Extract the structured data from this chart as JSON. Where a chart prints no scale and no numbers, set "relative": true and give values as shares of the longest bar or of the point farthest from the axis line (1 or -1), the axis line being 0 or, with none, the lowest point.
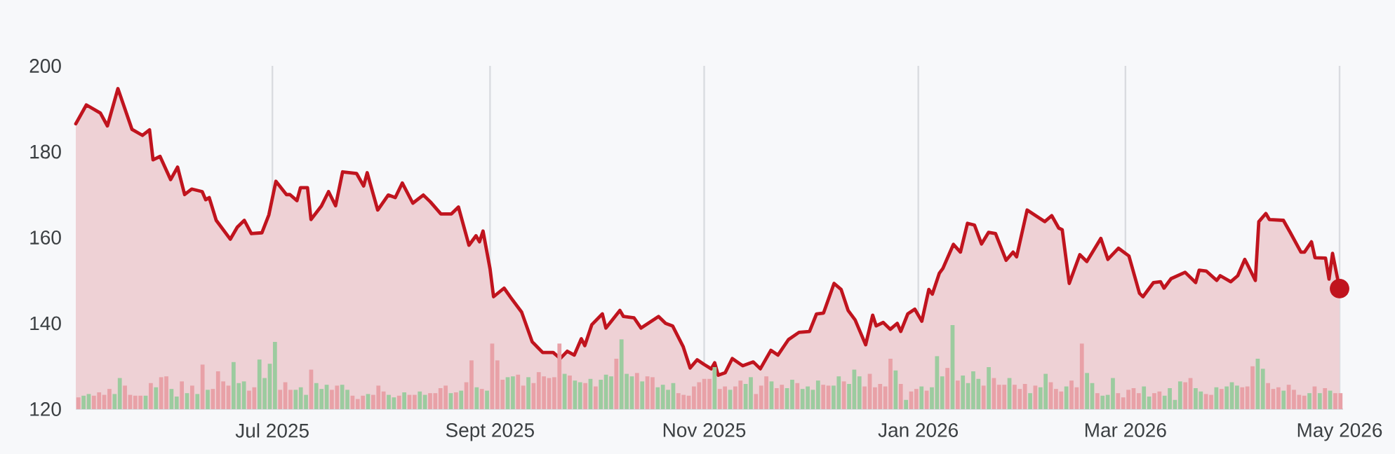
{
  "chart_data": [
    {
      "type": "area",
      "grid": "x",
      "xlim": [
        "2025-05-06",
        "2026-05-02"
      ],
      "xticks": [
        {
          "value": "2025-07-01",
          "label": "Jul 2025"
        },
        {
          "value": "2025-09-01",
          "label": "Sept 2025"
        },
        {
          "value": "2025-11-01",
          "label": "Nov 2025"
        },
        {
          "value": "2026-01-01",
          "label": "Jan 2026"
        },
        {
          "value": "2026-03-01",
          "label": "Mar 2026"
        },
        {
          "value": "2026-05-01",
          "label": "May 2026"
        }
      ],
      "ylim": [
        120,
        200
      ],
      "yticks": [
        120,
        140,
        160,
        180,
        200
      ],
      "series": [
        {
          "type": "area",
          "color": "#c0141e",
          "x": [
            "2025-05-06",
            "2025-05-09",
            "2025-05-13",
            "2025-05-15",
            "2025-05-18",
            "2025-05-22",
            "2025-05-25",
            "2025-05-27",
            "2025-05-28",
            "2025-05-30",
            "2025-06-02",
            "2025-06-04",
            "2025-06-06",
            "2025-06-08",
            "2025-06-11",
            "2025-06-12",
            "2025-06-13",
            "2025-06-15",
            "2025-06-19",
            "2025-06-21",
            "2025-06-23",
            "2025-06-25",
            "2025-06-28",
            "2025-06-30",
            "2025-07-02",
            "2025-07-05",
            "2025-07-06",
            "2025-07-08",
            "2025-07-09",
            "2025-07-11",
            "2025-07-12",
            "2025-07-15",
            "2025-07-17",
            "2025-07-19",
            "2025-07-21",
            "2025-07-25",
            "2025-07-27",
            "2025-07-28",
            "2025-07-31",
            "2025-08-03",
            "2025-08-05",
            "2025-08-07",
            "2025-08-10",
            "2025-08-13",
            "2025-08-15",
            "2025-08-18",
            "2025-08-21",
            "2025-08-23",
            "2025-08-26",
            "2025-08-28",
            "2025-08-29",
            "2025-08-30",
            "2025-09-01",
            "2025-09-02",
            "2025-09-05",
            "2025-09-07",
            "2025-09-10",
            "2025-09-13",
            "2025-09-16",
            "2025-09-19",
            "2025-09-21",
            "2025-09-23",
            "2025-09-25",
            "2025-09-27",
            "2025-09-28",
            "2025-09-30",
            "2025-10-03",
            "2025-10-04",
            "2025-10-08",
            "2025-10-09",
            "2025-10-12",
            "2025-10-14",
            "2025-10-19",
            "2025-10-21",
            "2025-10-23",
            "2025-10-26",
            "2025-10-28",
            "2025-10-30",
            "2025-11-01",
            "2025-11-03",
            "2025-11-04",
            "2025-11-05",
            "2025-11-07",
            "2025-11-09",
            "2025-11-12",
            "2025-11-15",
            "2025-11-17",
            "2025-11-20",
            "2025-11-22",
            "2025-11-25",
            "2025-11-28",
            "2025-12-01",
            "2025-12-03",
            "2025-12-05",
            "2025-12-08",
            "2025-12-10",
            "2025-12-12",
            "2025-12-14",
            "2025-12-17",
            "2025-12-19",
            "2025-12-20",
            "2025-12-22",
            "2025-12-24",
            "2025-12-26",
            "2025-12-27",
            "2025-12-29",
            "2025-12-31",
            "2026-01-02",
            "2026-01-04",
            "2026-01-05",
            "2026-01-07",
            "2026-01-08",
            "2026-01-11",
            "2026-01-13",
            "2026-01-15",
            "2026-01-17",
            "2026-01-19",
            "2026-01-21",
            "2026-01-23",
            "2026-01-26",
            "2026-01-28",
            "2026-01-29",
            "2026-02-01",
            "2026-02-06",
            "2026-02-08",
            "2026-02-10",
            "2026-02-11",
            "2026-02-13",
            "2026-02-16",
            "2026-02-18",
            "2026-02-22",
            "2026-02-24",
            "2026-02-27",
            "2026-03-02",
            "2026-03-05",
            "2026-03-06",
            "2026-03-09",
            "2026-03-11",
            "2026-03-12",
            "2026-03-14",
            "2026-03-18",
            "2026-03-21",
            "2026-03-22",
            "2026-03-24",
            "2026-03-27",
            "2026-03-28",
            "2026-03-31",
            "2026-04-02",
            "2026-04-04",
            "2026-04-05",
            "2026-04-07",
            "2026-04-08",
            "2026-04-10",
            "2026-04-11",
            "2026-04-15",
            "2026-04-17",
            "2026-04-20",
            "2026-04-21",
            "2026-04-23",
            "2026-04-24",
            "2026-04-27",
            "2026-04-28",
            "2026-04-29",
            "2026-05-01"
          ],
          "values": [
            186.5,
            190.9,
            189.0,
            186.0,
            194.7,
            185.2,
            183.8,
            185.1,
            178.1,
            178.9,
            173.5,
            176.4,
            170.0,
            171.3,
            170.7,
            168.8,
            169.3,
            164.0,
            159.6,
            162.4,
            164.0,
            160.9,
            161.1,
            165.3,
            173.1,
            170.0,
            170.0,
            168.6,
            171.6,
            171.6,
            164.2,
            167.4,
            170.7,
            167.4,
            175.3,
            174.9,
            172.0,
            175.1,
            166.4,
            169.9,
            169.3,
            172.7,
            168.0,
            169.9,
            168.3,
            165.5,
            165.5,
            167.1,
            158.2,
            160.4,
            159.0,
            161.5,
            152.7,
            146.2,
            148.2,
            145.9,
            142.6,
            135.7,
            133.2,
            133.2,
            131.8,
            133.5,
            132.6,
            136.4,
            134.8,
            139.7,
            142.2,
            138.9,
            143.0,
            141.6,
            141.3,
            138.9,
            141.6,
            140.0,
            139.4,
            134.6,
            129.6,
            131.5,
            130.4,
            129.4,
            130.8,
            127.9,
            128.5,
            131.8,
            130.1,
            131.0,
            129.4,
            133.7,
            132.6,
            136.2,
            137.9,
            138.1,
            142.2,
            142.4,
            149.3,
            147.9,
            143.0,
            140.8,
            135.0,
            141.9,
            139.4,
            140.2,
            138.6,
            140.0,
            138.1,
            142.2,
            143.3,
            140.5,
            147.9,
            146.8,
            151.7,
            152.8,
            158.4,
            156.6,
            163.3,
            162.9,
            158.5,
            161.2,
            160.9,
            154.7,
            156.6,
            155.5,
            166.4,
            163.7,
            165.1,
            162.2,
            161.8,
            149.3,
            156.0,
            154.4,
            159.8,
            154.9,
            157.5,
            155.7,
            147.0,
            146.2,
            149.5,
            149.7,
            148.2,
            150.4,
            151.9,
            149.5,
            152.4,
            152.2,
            150.0,
            151.1,
            149.7,
            151.1,
            154.9,
            153.3,
            150.0,
            163.7,
            165.6,
            164.2,
            164.0,
            161.1,
            156.6,
            156.6,
            159.0,
            155.3,
            155.2,
            150.3,
            156.3,
            148.1
          ]
        },
        {
          "type": "scatter",
          "color": "#c0141e",
          "marker": "circle",
          "x": [
            "2026-05-01"
          ],
          "values": [
            148.1
          ]
        }
      ]
    },
    {
      "type": "bar",
      "relative": true,
      "categories": [
        null,
        null,
        null,
        null,
        null,
        null,
        null,
        null,
        null,
        null,
        null,
        null,
        null,
        null,
        null,
        null,
        null,
        null,
        null,
        null,
        null,
        null,
        null,
        null,
        null,
        null,
        null,
        null,
        null,
        null,
        null,
        null,
        null,
        null,
        null,
        null,
        null,
        null,
        null,
        null,
        null,
        null,
        null,
        null,
        null,
        null,
        null,
        null,
        null,
        null,
        null,
        null,
        null,
        null,
        null,
        null,
        null,
        null,
        null,
        null,
        null,
        null,
        null,
        null,
        null,
        null,
        null,
        null,
        null,
        null,
        null,
        null,
        null,
        null,
        null,
        null,
        null,
        null,
        null,
        null,
        null,
        null,
        null,
        null,
        null,
        null,
        null,
        null,
        null,
        null,
        null,
        null,
        null,
        null,
        null,
        null,
        null,
        null,
        null,
        null,
        null,
        null,
        null,
        null,
        null,
        null,
        null,
        null,
        null,
        null,
        null,
        null,
        null,
        null,
        null,
        null,
        null,
        null,
        null,
        null,
        null,
        null,
        null,
        null,
        null,
        null,
        null,
        null,
        null,
        null,
        null,
        null,
        null,
        null,
        null,
        null,
        null,
        null,
        null,
        null,
        null,
        null,
        null,
        null,
        null,
        null,
        null,
        null,
        null,
        null,
        null,
        null,
        null,
        null,
        null,
        null,
        null,
        null,
        null,
        null,
        null,
        null,
        null,
        null,
        null,
        null,
        null,
        null,
        null,
        null,
        null,
        null,
        null,
        null,
        null,
        null,
        null,
        null,
        null,
        null,
        null,
        null,
        null,
        null,
        null,
        null,
        null,
        null,
        null,
        null,
        null,
        null,
        null,
        null,
        null,
        null,
        null,
        null,
        null,
        null,
        null,
        null,
        null,
        null,
        null,
        null,
        null,
        null,
        null,
        null,
        null,
        null,
        null,
        null,
        null,
        null,
        null,
        null,
        null,
        null,
        null,
        null,
        null,
        null,
        null,
        null,
        null,
        null,
        null,
        null,
        null,
        null,
        null,
        null,
        null,
        null,
        null,
        null,
        null,
        null,
        null,
        null,
        null,
        null,
        null
      ],
      "values": [
        0.14,
        0.16,
        0.18,
        0.16,
        0.2,
        0.17,
        0.24,
        0.18,
        0.37,
        0.28,
        0.17,
        0.16,
        0.16,
        0.16,
        0.31,
        0.26,
        0.38,
        0.39,
        0.24,
        0.15,
        0.33,
        0.19,
        0.28,
        0.18,
        0.53,
        0.23,
        0.24,
        0.45,
        0.33,
        0.28,
        0.56,
        0.31,
        0.33,
        0.22,
        0.26,
        0.59,
        0.37,
        0.54,
        0.8,
        0.23,
        0.32,
        0.23,
        0.23,
        0.26,
        0.17,
        0.47,
        0.31,
        0.24,
        0.29,
        0.23,
        0.28,
        0.29,
        0.23,
        0.16,
        0.12,
        0.16,
        0.18,
        0.17,
        0.28,
        0.21,
        0.17,
        0.14,
        0.16,
        0.2,
        0.17,
        0.17,
        0.21,
        0.17,
        0.19,
        0.19,
        0.25,
        0.28,
        0.19,
        0.2,
        0.22,
        0.32,
        0.58,
        0.26,
        0.24,
        0.22,
        0.78,
        0.58,
        0.35,
        0.38,
        0.39,
        0.41,
        0.28,
        0.38,
        0.31,
        0.44,
        0.39,
        0.37,
        0.38,
        0.78,
        0.42,
        0.4,
        0.34,
        0.32,
        0.31,
        0.36,
        0.27,
        0.35,
        0.41,
        0.39,
        0.6,
        0.83,
        0.42,
        0.39,
        0.43,
        0.33,
        0.39,
        0.38,
        0.26,
        0.29,
        0.23,
        0.31,
        0.19,
        0.17,
        0.16,
        0.27,
        0.32,
        0.36,
        0.36,
        0.5,
        0.24,
        0.27,
        0.23,
        0.27,
        0.34,
        0.3,
        0.38,
        0.18,
        0.28,
        0.39,
        0.33,
        0.25,
        0.29,
        0.25,
        0.35,
        0.31,
        0.24,
        0.27,
        0.23,
        0.34,
        0.29,
        0.28,
        0.28,
        0.39,
        0.33,
        0.3,
        0.47,
        0.39,
        0.27,
        0.42,
        0.26,
        0.3,
        0.27,
        0.6,
        0.46,
        0.3,
        0.11,
        0.21,
        0.24,
        0.27,
        0.22,
        0.26,
        0.63,
        0.39,
        0.49,
        1,
        0.34,
        0.4,
        0.31,
        0.45,
        0.36,
        0.28,
        0.5,
        0.37,
        0.29,
        0.29,
        0.37,
        0.29,
        0.24,
        0.3,
        0.19,
        0.28,
        0.26,
        0.42,
        0.32,
        0.24,
        0.21,
        0.27,
        0.34,
        0.26,
        0.78,
        0.43,
        0.31,
        0.19,
        0.16,
        0.17,
        0.37,
        0.19,
        0.14,
        0.23,
        0.25,
        0.19,
        0.27,
        0.15,
        0.19,
        0.21,
        0.16,
        0.25,
        0.11,
        0.33,
        0.32,
        0.37,
        0.25,
        0.21,
        0.18,
        0.17,
        0.26,
        0.24,
        0.27,
        0.32,
        0.28,
        0.26,
        0.27,
        0.51,
        0.6,
        0.48,
        0.31,
        0.24,
        0.26,
        0.22,
        0.29,
        0.23,
        0.17,
        0.16,
        0.19,
        0.27,
        0.19,
        0.25,
        0.22,
        0.19,
        0.19
      ],
      "colors": [
        "#e8a1a7",
        "#9ccb9f",
        "#9ccb9f",
        "#e8a1a7",
        "#e8a1a7",
        "#e8a1a7",
        "#e8a1a7",
        "#9ccb9f",
        "#9ccb9f",
        "#e8a1a7",
        "#e8a1a7",
        "#e8a1a7",
        "#e8a1a7",
        "#9ccb9f",
        "#e8a1a7",
        "#9ccb9f",
        "#e8a1a7",
        "#e8a1a7",
        "#9ccb9f",
        "#9ccb9f",
        "#e8a1a7",
        "#9ccb9f",
        "#e8a1a7",
        "#9ccb9f",
        "#e8a1a7",
        "#9ccb9f",
        "#e8a1a7",
        "#e8a1a7",
        "#e8a1a7",
        "#e8a1a7",
        "#9ccb9f",
        "#9ccb9f",
        "#9ccb9f",
        "#e8a1a7",
        "#e8a1a7",
        "#9ccb9f",
        "#9ccb9f",
        "#9ccb9f",
        "#9ccb9f",
        "#e8a1a7",
        "#e8a1a7",
        "#e8a1a7",
        "#9ccb9f",
        "#9ccb9f",
        "#9ccb9f",
        "#e8a1a7",
        "#9ccb9f",
        "#9ccb9f",
        "#9ccb9f",
        "#e8a1a7",
        "#e8a1a7",
        "#9ccb9f",
        "#9ccb9f",
        "#e8a1a7",
        "#e8a1a7",
        "#e8a1a7",
        "#9ccb9f",
        "#e8a1a7",
        "#e8a1a7",
        "#e8a1a7",
        "#9ccb9f",
        "#9ccb9f",
        "#e8a1a7",
        "#9ccb9f",
        "#e8a1a7",
        "#e8a1a7",
        "#9ccb9f",
        "#9ccb9f",
        "#e8a1a7",
        "#e8a1a7",
        "#e8a1a7",
        "#e8a1a7",
        "#9ccb9f",
        "#e8a1a7",
        "#9ccb9f",
        "#e8a1a7",
        "#e8a1a7",
        "#9ccb9f",
        "#e8a1a7",
        "#9ccb9f",
        "#e8a1a7",
        "#e8a1a7",
        "#e8a1a7",
        "#9ccb9f",
        "#9ccb9f",
        "#e8a1a7",
        "#e8a1a7",
        "#9ccb9f",
        "#e8a1a7",
        "#e8a1a7",
        "#e8a1a7",
        "#e8a1a7",
        "#e8a1a7",
        "#e8a1a7",
        "#9ccb9f",
        "#e8a1a7",
        "#9ccb9f",
        "#9ccb9f",
        "#e8a1a7",
        "#9ccb9f",
        "#e8a1a7",
        "#9ccb9f",
        "#9ccb9f",
        "#9ccb9f",
        "#e8a1a7",
        "#9ccb9f",
        "#9ccb9f",
        "#9ccb9f",
        "#e8a1a7",
        "#9ccb9f",
        "#e8a1a7",
        "#e8a1a7",
        "#9ccb9f",
        "#9ccb9f",
        "#9ccb9f",
        "#9ccb9f",
        "#e8a1a7",
        "#e8a1a7",
        "#e8a1a7",
        "#e8a1a7",
        "#e8a1a7",
        "#e8a1a7",
        "#e8a1a7",
        "#9ccb9f",
        "#e8a1a7",
        "#e8a1a7",
        "#9ccb9f",
        "#e8a1a7",
        "#e8a1a7",
        "#9ccb9f",
        "#9ccb9f",
        "#e8a1a7",
        "#e8a1a7",
        "#e8a1a7",
        "#9ccb9f",
        "#e8a1a7",
        "#e8a1a7",
        "#9ccb9f",
        "#9ccb9f",
        "#e8a1a7",
        "#9ccb9f",
        "#9ccb9f",
        "#9ccb9f",
        "#9ccb9f",
        "#e8a1a7",
        "#e8a1a7",
        "#9ccb9f",
        "#9ccb9f",
        "#e8a1a7",
        "#9ccb9f",
        "#9ccb9f",
        "#9ccb9f",
        "#e8a1a7",
        "#e8a1a7",
        "#e8a1a7",
        "#e8a1a7",
        "#e8a1a7",
        "#e8a1a7",
        "#9ccb9f",
        "#e8a1a7",
        "#9ccb9f",
        "#e8a1a7",
        "#e8a1a7",
        "#9ccb9f",
        "#e8a1a7",
        "#9ccb9f",
        "#9ccb9f",
        "#9ccb9f",
        "#e8a1a7",
        "#9ccb9f",
        "#e8a1a7",
        "#9ccb9f",
        "#9ccb9f",
        "#9ccb9f",
        "#9ccb9f",
        "#e8a1a7",
        "#9ccb9f",
        "#e8a1a7",
        "#e8a1a7",
        "#e8a1a7",
        "#9ccb9f",
        "#e8a1a7",
        "#e8a1a7",
        "#e8a1a7",
        "#9ccb9f",
        "#e8a1a7",
        "#9ccb9f",
        "#9ccb9f",
        "#e8a1a7",
        "#e8a1a7",
        "#e8a1a7",
        "#9ccb9f",
        "#e8a1a7",
        "#e8a1a7",
        "#e8a1a7",
        "#9ccb9f",
        "#9ccb9f",
        "#e8a1a7",
        "#9ccb9f",
        "#9ccb9f",
        "#9ccb9f",
        "#e8a1a7",
        "#e8a1a7",
        "#e8a1a7",
        "#e8a1a7",
        "#e8a1a7",
        "#9ccb9f",
        "#9ccb9f",
        "#e8a1a7",
        "#e8a1a7",
        "#9ccb9f",
        "#9ccb9f",
        "#9ccb9f",
        "#9ccb9f",
        "#e8a1a7",
        "#e8a1a7",
        "#9ccb9f",
        "#9ccb9f",
        "#e8a1a7",
        "#e8a1a7",
        "#9ccb9f",
        "#e8a1a7",
        "#9ccb9f",
        "#9ccb9f",
        "#9ccb9f",
        "#e8a1a7",
        "#e8a1a7",
        "#e8a1a7",
        "#9ccb9f",
        "#9ccb9f",
        "#e8a1a7",
        "#e8a1a7",
        "#e8a1a7",
        "#9ccb9f",
        "#e8a1a7",
        "#e8a1a7",
        "#e8a1a7",
        "#e8a1a7",
        "#9ccb9f",
        "#e8a1a7",
        "#9ccb9f",
        "#e8a1a7",
        "#9ccb9f",
        "#e8a1a7",
        "#e8a1a7"
      ]
    }
  ]
}
